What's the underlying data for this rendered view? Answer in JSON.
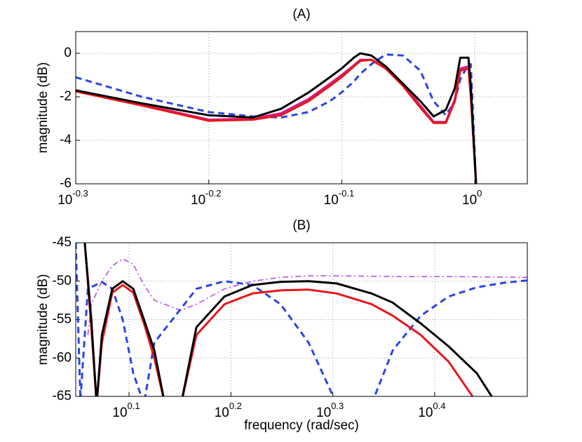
{
  "chart_data": [
    {
      "type": "line",
      "title": "(A)",
      "ylabel": "magnitude (dB)",
      "xscale": "log",
      "grid": true,
      "xlim": [
        0.5012,
        1.095
      ],
      "xticks": [
        {
          "value": 0.5012,
          "label": "10^-0.3"
        },
        {
          "value": 0.631,
          "label": "10^-0.2"
        },
        {
          "value": 0.7943,
          "label": "10^-0.1"
        },
        {
          "value": 1,
          "label": "10^0"
        }
      ],
      "ylim": [
        -6,
        1
      ],
      "yticks": [
        -6,
        -4,
        -2,
        0
      ],
      "series": [
        {
          "color": "#2b45e8",
          "linestyle": "dashed",
          "x": [
            0.501,
            0.562,
            0.631,
            0.681,
            0.715,
            0.75,
            0.778,
            0.794,
            0.811,
            0.82,
            0.836,
            0.857,
            0.883,
            0.91,
            0.931,
            0.951,
            0.966,
            0.975,
            0.989,
            0.993,
            1.002
          ],
          "values": [
            -1.1,
            -2.0,
            -2.7,
            -2.9,
            -2.95,
            -2.7,
            -2.2,
            -1.8,
            -1.3,
            -0.95,
            -0.5,
            -0.05,
            -0.1,
            -0.8,
            -2.2,
            -2.85,
            -2.2,
            -1.2,
            -0.5,
            -0.5,
            -6
          ]
        },
        {
          "color": "#d0208a",
          "linestyle": "solid",
          "x": [
            0.501,
            0.562,
            0.631,
            0.681,
            0.715,
            0.75,
            0.778,
            0.794,
            0.811,
            0.82,
            0.836,
            0.857,
            0.883,
            0.91,
            0.931,
            0.951,
            0.966,
            0.975,
            0.989,
            0.993,
            1.002
          ],
          "values": [
            -1.7,
            -2.35,
            -3.05,
            -3.0,
            -2.75,
            -2.1,
            -1.4,
            -1.0,
            -0.55,
            -0.3,
            -0.3,
            -0.6,
            -1.4,
            -2.4,
            -3.15,
            -3.15,
            -2.1,
            -0.7,
            -0.6,
            -1.9,
            -6
          ]
        },
        {
          "color": "#e8151a",
          "linestyle": "solid",
          "x": [
            0.501,
            0.562,
            0.631,
            0.681,
            0.715,
            0.75,
            0.778,
            0.794,
            0.811,
            0.82,
            0.836,
            0.857,
            0.883,
            0.91,
            0.931,
            0.951,
            0.966,
            0.975,
            0.989,
            0.993,
            1.002
          ],
          "values": [
            -1.75,
            -2.4,
            -3.1,
            -3.05,
            -2.85,
            -2.2,
            -1.5,
            -1.1,
            -0.6,
            -0.35,
            -0.3,
            -0.7,
            -1.5,
            -2.5,
            -3.2,
            -3.2,
            -2.2,
            -0.8,
            -0.7,
            -2,
            -6
          ]
        },
        {
          "color": "#000000",
          "linestyle": "solid",
          "x": [
            0.501,
            0.562,
            0.631,
            0.681,
            0.715,
            0.75,
            0.778,
            0.794,
            0.811,
            0.82,
            0.836,
            0.857,
            0.883,
            0.91,
            0.931,
            0.951,
            0.966,
            0.975,
            0.989,
            0.993,
            1.002
          ],
          "values": [
            -1.7,
            -2.3,
            -2.85,
            -2.95,
            -2.55,
            -1.8,
            -1.1,
            -0.7,
            -0.2,
            0,
            -0.1,
            -0.6,
            -1.4,
            -2.2,
            -2.9,
            -2.6,
            -1.6,
            -0.2,
            -0.2,
            -1.5,
            -6
          ]
        }
      ]
    },
    {
      "type": "line",
      "title": "(B)",
      "ylabel": "magnitude (dB)",
      "xlabel": "frequency (rad/sec)",
      "xscale": "log",
      "grid": true,
      "xlim": [
        1.116,
        3.097
      ],
      "xticks": [
        {
          "value": 1.2589,
          "label": "10^0.1"
        },
        {
          "value": 1.5849,
          "label": "10^0.2"
        },
        {
          "value": 1.9953,
          "label": "10^0.3"
        },
        {
          "value": 2.5119,
          "label": "10^0.4"
        }
      ],
      "ylim": [
        -65,
        -45
      ],
      "yticks": [
        -65,
        -60,
        -55,
        -50,
        -45
      ],
      "series": [
        {
          "color": "#b544e0",
          "linestyle": "dashdot",
          "x": [
            1.147,
            1.156,
            1.184,
            1.212,
            1.241,
            1.271,
            1.302,
            1.333,
            1.416,
            1.466,
            1.562,
            1.664,
            1.773,
            1.889,
            2.013,
            2.285,
            2.593,
            3.097
          ],
          "values": [
            -57,
            -53,
            -50,
            -48,
            -47.1,
            -47.8,
            -50.5,
            -52.5,
            -53.8,
            -53,
            -51,
            -50,
            -49.5,
            -49.3,
            -49.3,
            -49.4,
            -49.4,
            -49.5
          ]
        },
        {
          "color": "#2b45e8",
          "linestyle": "dashed",
          "x": [
            1.116,
            1.128,
            1.147,
            1.184,
            1.212,
            1.241,
            1.271,
            1.302,
            1.333,
            1.466,
            1.562,
            1.664,
            1.773,
            1.889,
            2.013,
            2.178,
            2.285,
            2.434,
            2.593,
            2.763,
            2.944,
            3.097
          ],
          "values": [
            -45,
            -65.5,
            -51,
            -50.1,
            -51,
            -55,
            -62,
            -66,
            -58,
            -51,
            -50,
            -50.5,
            -53,
            -58,
            -66,
            -66,
            -59,
            -54.5,
            -52,
            -50.8,
            -50.2,
            -49.9
          ]
        },
        {
          "color": "#e8151a",
          "linestyle": "solid",
          "x": [
            1.139,
            1.156,
            1.17,
            1.184,
            1.212,
            1.241,
            1.271,
            1.302,
            1.333,
            1.365,
            1.416,
            1.466,
            1.562,
            1.664,
            1.773,
            1.889,
            2.013,
            2.178,
            2.285,
            2.434,
            2.593,
            2.763
          ],
          "values": [
            -45,
            -56,
            -66,
            -58,
            -51.5,
            -50.5,
            -51.5,
            -55.5,
            -60,
            -66,
            -66,
            -57,
            -53,
            -51.6,
            -51.2,
            -51.1,
            -51.6,
            -53,
            -54.5,
            -57,
            -60.5,
            -65.8
          ]
        },
        {
          "color": "#000000",
          "linestyle": "solid",
          "x": [
            1.139,
            1.156,
            1.17,
            1.184,
            1.212,
            1.241,
            1.271,
            1.302,
            1.333,
            1.365,
            1.416,
            1.466,
            1.562,
            1.664,
            1.773,
            1.889,
            2.013,
            2.178,
            2.285,
            2.434,
            2.593,
            2.763,
            2.874
          ],
          "values": [
            -45,
            -55,
            -66,
            -57,
            -51,
            -50,
            -51,
            -55,
            -59,
            -66,
            -66,
            -56,
            -52,
            -50.5,
            -50.1,
            -50,
            -50.3,
            -51.6,
            -52.8,
            -55.5,
            -58.5,
            -62,
            -65.5
          ]
        }
      ]
    }
  ]
}
